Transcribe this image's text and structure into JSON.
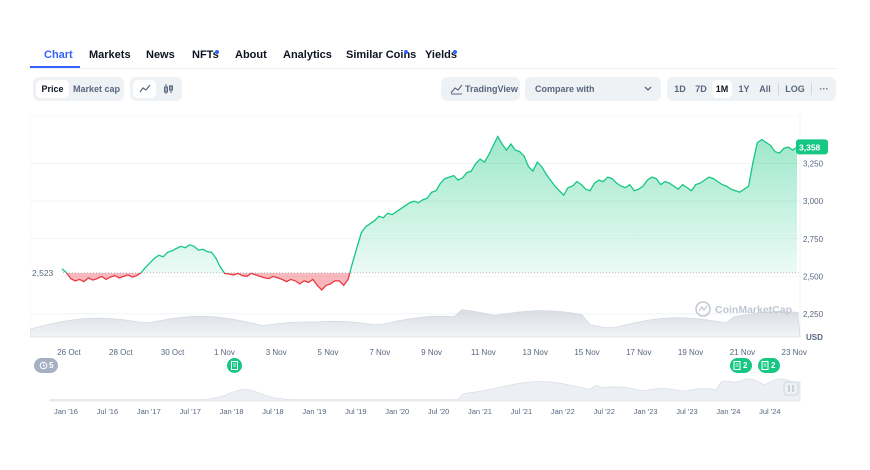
{
  "tabs": [
    {
      "label": "Chart",
      "active": true,
      "dot": false
    },
    {
      "label": "Markets",
      "active": false,
      "dot": false
    },
    {
      "label": "News",
      "active": false,
      "dot": false
    },
    {
      "label": "NFTs",
      "active": false,
      "dot": true
    },
    {
      "label": "About",
      "active": false,
      "dot": false
    },
    {
      "label": "Analytics",
      "active": false,
      "dot": false
    },
    {
      "label": "Similar Coins",
      "active": false,
      "dot": true
    },
    {
      "label": "Yields",
      "active": false,
      "dot": true
    }
  ],
  "toolbar": {
    "price_label": "Price",
    "marketcap_label": "Market cap",
    "line_icon": "line-chart-icon",
    "candle_icon": "candlestick-icon",
    "tradingview_label": "TradingView",
    "compare_label": "Compare with",
    "ranges": [
      "1D",
      "7D",
      "1M",
      "1Y",
      "All"
    ],
    "selected_range": "1M",
    "log_label": "LOG",
    "more_label": "···"
  },
  "chart_data": {
    "type": "line",
    "series": [
      {
        "values": [
          2550,
          2525,
          2485,
          2470,
          2480,
          2465,
          2490,
          2475,
          2485,
          2500,
          2480,
          2495,
          2505,
          2490,
          2500,
          2510,
          2495,
          2505,
          2525,
          2560,
          2590,
          2620,
          2640,
          2630,
          2660,
          2670,
          2685,
          2700,
          2690,
          2710,
          2700,
          2675,
          2680,
          2665,
          2660,
          2620,
          2560,
          2520,
          2515,
          2510,
          2520,
          2505,
          2500,
          2520,
          2510,
          2500,
          2490,
          2485,
          2500,
          2490,
          2480,
          2465,
          2480,
          2470,
          2450,
          2470,
          2460,
          2480,
          2440,
          2410,
          2440,
          2450,
          2470,
          2470,
          2440,
          2480,
          2590,
          2690,
          2790,
          2830,
          2850,
          2870,
          2900,
          2890,
          2920,
          2910,
          2930,
          2950,
          2970,
          2990,
          3000,
          2990,
          3010,
          3020,
          3060,
          3070,
          3120,
          3150,
          3160,
          3170,
          3140,
          3155,
          3190,
          3200,
          3250,
          3280,
          3260,
          3310,
          3370,
          3430,
          3380,
          3340,
          3380,
          3340,
          3330,
          3300,
          3230,
          3200,
          3260,
          3230,
          3180,
          3140,
          3100,
          3070,
          3040,
          3090,
          3100,
          3130,
          3110,
          3080,
          3070,
          3120,
          3140,
          3130,
          3160,
          3150,
          3120,
          3100,
          3090,
          3110,
          3070,
          3080,
          3100,
          3140,
          3160,
          3150,
          3110,
          3130,
          3120,
          3100,
          3080,
          3110,
          3090,
          3070,
          3110,
          3120,
          3140,
          3160,
          3150,
          3130,
          3110,
          3100,
          3080,
          3070,
          3060,
          3080,
          3100,
          3260,
          3390,
          3410,
          3390,
          3370,
          3330,
          3320,
          3350,
          3360,
          3340,
          3358
        ]
      }
    ],
    "baseline": 2523,
    "last_value": 3358,
    "baseline_label": "2,523",
    "last_label": "3,358",
    "ylim": [
      2150,
      3480
    ],
    "y_ticks": [
      {
        "value": 3250,
        "label": "3,250"
      },
      {
        "value": 3000,
        "label": "3,000"
      },
      {
        "value": 2750,
        "label": "2,750"
      },
      {
        "value": 2500,
        "label": "2,500"
      },
      {
        "value": 2250,
        "label": "2,250"
      }
    ],
    "x_ticks": [
      "26 Oct",
      "28 Oct",
      "30 Oct",
      "1 Nov",
      "3 Nov",
      "5 Nov",
      "7 Nov",
      "9 Nov",
      "11 Nov",
      "13 Nov",
      "15 Nov",
      "17 Nov",
      "19 Nov",
      "21 Nov",
      "23 Nov"
    ],
    "volume_label": "USD",
    "watermark": "CoinMarketCap",
    "up_color": "#16c784",
    "down_color": "#ea3943"
  },
  "markers": [
    {
      "text": "5",
      "icon": "history-icon"
    },
    {
      "text": "",
      "icon": "document-icon"
    },
    {
      "text": "2",
      "icon": "document-icon"
    },
    {
      "text": "2",
      "icon": "document-icon"
    }
  ],
  "navigator": {
    "labels": [
      "Jan '16",
      "Jul '16",
      "Jan '17",
      "Jul '17",
      "Jan '18",
      "Jul '18",
      "Jan '19",
      "Jul '19",
      "Jan '20",
      "Jul '20",
      "Jan '21",
      "Jul '21",
      "Jan '22",
      "Jul '22",
      "Jan '23",
      "Jul '23",
      "Jan '24",
      "Jul '24"
    ],
    "handle_icon": "range-handle-icon"
  }
}
